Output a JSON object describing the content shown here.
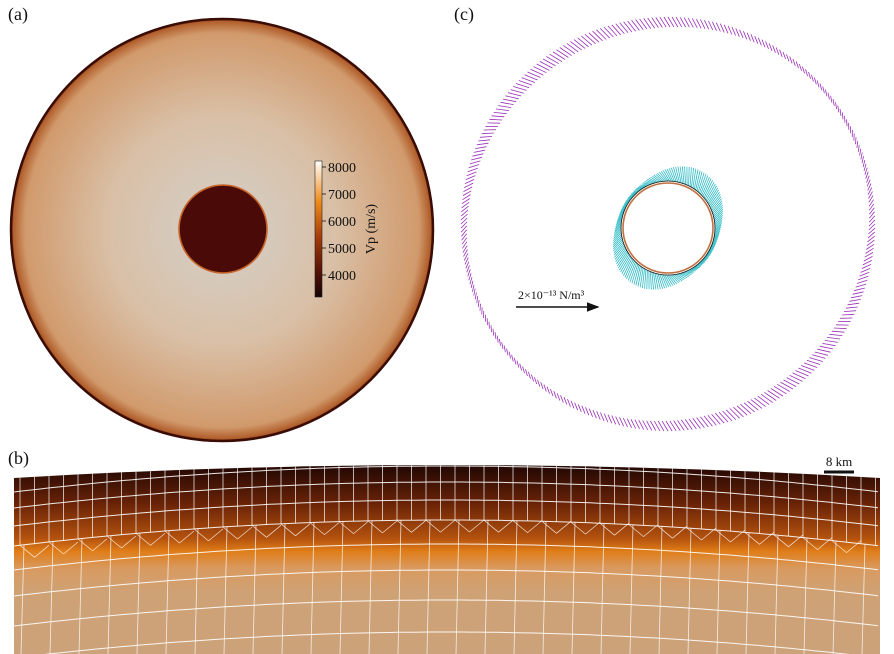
{
  "panels": {
    "a": {
      "label": "(a)",
      "colorbar": {
        "title": "Vp (m/s)",
        "ticks": [
          "8000",
          "7000",
          "6000",
          "5000",
          "4000"
        ],
        "colors": [
          "#ffffff",
          "#f08a1a",
          "#a83e0a",
          "#5a1306",
          "#150404"
        ]
      }
    },
    "b": {
      "label": "(b)",
      "scale_bar_label": "8 km"
    },
    "c": {
      "label": "(c)",
      "arrow_label": "2×10⁻¹³ N/m³",
      "colors": {
        "outer_vectors": "#9a30b8",
        "inner_vectors": "#2bbac4",
        "inner_boundary": "#c07040"
      }
    }
  }
}
